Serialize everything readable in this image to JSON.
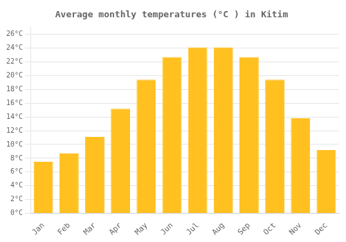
{
  "chart_data": {
    "type": "bar",
    "title": "Average monthly temperatures (°C ) in Kitim",
    "categories": [
      "Jan",
      "Feb",
      "Mar",
      "Apr",
      "May",
      "Jun",
      "Jul",
      "Aug",
      "Sep",
      "Oct",
      "Nov",
      "Dec"
    ],
    "values": [
      7.5,
      8.7,
      11.1,
      15.2,
      19.4,
      22.7,
      24.1,
      24.1,
      22.7,
      19.4,
      13.8,
      9.2
    ],
    "color": "#FFC020",
    "ylim": [
      0,
      27
    ],
    "yticks": [
      {
        "value": 0,
        "label": "0°C"
      },
      {
        "value": 2,
        "label": "2°C"
      },
      {
        "value": 4,
        "label": "4°C"
      },
      {
        "value": 6,
        "label": "6°C"
      },
      {
        "value": 8,
        "label": "8°C"
      },
      {
        "value": 10,
        "label": "10°C"
      },
      {
        "value": 12,
        "label": "12°C"
      },
      {
        "value": 14,
        "label": "14°C"
      },
      {
        "value": 16,
        "label": "16°C"
      },
      {
        "value": 18,
        "label": "18°C"
      },
      {
        "value": 20,
        "label": "20°C"
      },
      {
        "value": 22,
        "label": "22°C"
      },
      {
        "value": 24,
        "label": "24°C"
      },
      {
        "value": 26,
        "label": "26°C"
      }
    ],
    "grid": true
  }
}
